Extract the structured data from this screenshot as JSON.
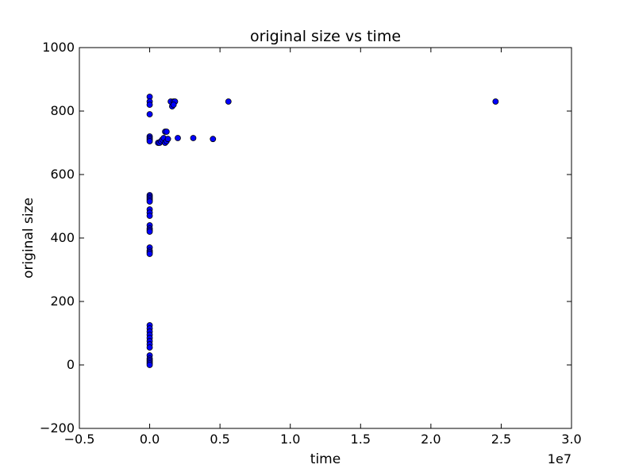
{
  "chart_data": {
    "type": "scatter",
    "title": "original size vs time",
    "xlabel": "time",
    "ylabel": "original size",
    "xlim": [
      -0.5,
      3.0
    ],
    "ylim": [
      -200,
      1000
    ],
    "x_ticks": [
      "−0.5",
      "0.0",
      "0.5",
      "1.0",
      "1.5",
      "2.0",
      "2.5",
      "3.0"
    ],
    "y_ticks": [
      "−200",
      "0",
      "200",
      "400",
      "600",
      "800",
      "1000"
    ],
    "x_scale_label": "1e7",
    "marker_color": "#0000ff",
    "marker_edge": "#000000",
    "grid": false,
    "series": [
      {
        "x": [
          0.0,
          0.0,
          0.0,
          0.0,
          0.0,
          0.0,
          0.0,
          0.0,
          0.0,
          0.0,
          0.0,
          0.0,
          0.0,
          0.0,
          0.0,
          0.0,
          0.0,
          0.0,
          0.0,
          0.0,
          0.0,
          0.0,
          0.0,
          0.0,
          0.0,
          0.0,
          0.0,
          0.0,
          0.0,
          0.0,
          0.0,
          0.0,
          0.0,
          0.0,
          0.0,
          0.0,
          0.0,
          0.0,
          0.06,
          0.07,
          0.08,
          0.09,
          0.1,
          0.11,
          0.12,
          0.13,
          0.11,
          0.12,
          0.15,
          0.16,
          0.17,
          0.18,
          0.17,
          0.2,
          0.31,
          0.45,
          0.56,
          2.46
        ],
        "y": [
          845,
          830,
          820,
          790,
          720,
          715,
          710,
          705,
          535,
          530,
          525,
          520,
          515,
          490,
          480,
          470,
          440,
          430,
          425,
          420,
          370,
          360,
          355,
          350,
          125,
          115,
          105,
          95,
          85,
          75,
          65,
          55,
          30,
          20,
          15,
          10,
          5,
          0,
          700,
          700,
          705,
          710,
          715,
          700,
          705,
          712,
          735,
          735,
          830,
          815,
          830,
          830,
          820,
          715,
          715,
          712,
          830,
          830
        ]
      }
    ]
  }
}
